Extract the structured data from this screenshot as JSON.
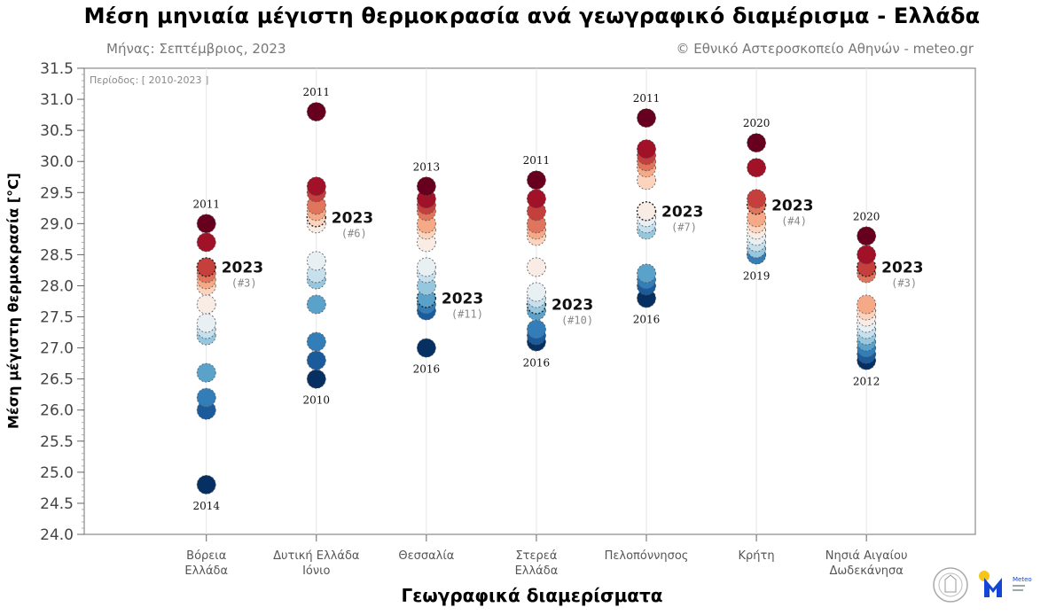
{
  "chart_data": {
    "type": "scatter",
    "title": "Μέση μηνιαία μέγιστη θερμοκρασία ανά γεωγραφικό διαμέρισμα - Ελλάδα",
    "subtitle_left": "Μήνας: Σεπτέμβριος, 2023",
    "subtitle_right": "© Εθνικό Αστεροσκοπείο Αθηνών - meteo.gr",
    "period_note": "Περίοδος: [ 2010-2023 ]",
    "ylabel": "Μέση μέγιστη θερμοκρασία [°C]",
    "xlabel": "Γεωγραφικά διαμερίσματα",
    "ylim": [
      24.0,
      31.5
    ],
    "yticks": [
      "24.0",
      "24.5",
      "25.0",
      "25.5",
      "26.0",
      "26.5",
      "27.0",
      "27.5",
      "28.0",
      "28.5",
      "29.0",
      "29.5",
      "30.0",
      "30.5",
      "31.0",
      "31.5"
    ],
    "highlight_year": "2023",
    "colormap": [
      "#67001f",
      "#b2182b",
      "#d6604d",
      "#f4a582",
      "#fddbc7",
      "#f7f7f7",
      "#d1e5f0",
      "#92c5de",
      "#4393c3",
      "#2166ac",
      "#053061"
    ],
    "regions": [
      {
        "name": [
          "Βόρεια",
          "Ελλάδα"
        ],
        "values": [
          29.0,
          28.7,
          28.3,
          28.2,
          28.1,
          28.0,
          27.7,
          27.4,
          27.3,
          27.2,
          26.6,
          26.2,
          26.0,
          24.8
        ],
        "max_year": "2011",
        "min_year": "2014",
        "rank_2023": 3,
        "rank_label": "(#3)"
      },
      {
        "name": [
          "Δυτική Ελλάδα",
          "Ιόνιο"
        ],
        "values": [
          30.8,
          29.6,
          29.5,
          29.3,
          29.2,
          29.1,
          29.0,
          28.4,
          28.2,
          28.1,
          27.7,
          27.1,
          26.8,
          26.5
        ],
        "max_year": "2011",
        "min_year": "2010",
        "rank_2023": 6,
        "rank_label": "(#6)"
      },
      {
        "name": [
          "Θεσσαλία"
        ],
        "values": [
          29.6,
          29.4,
          29.3,
          29.2,
          29.0,
          28.9,
          28.7,
          28.3,
          28.2,
          28.0,
          27.8,
          27.7,
          27.6,
          27.0
        ],
        "max_year": "2013",
        "min_year": "2016",
        "rank_2023": 11,
        "rank_label": "(#11)"
      },
      {
        "name": [
          "Στερεά",
          "Ελλάδα"
        ],
        "values": [
          29.7,
          29.4,
          29.2,
          29.0,
          28.9,
          28.8,
          28.3,
          27.9,
          27.8,
          27.7,
          27.6,
          27.3,
          27.2,
          27.1
        ],
        "max_year": "2011",
        "min_year": "2016",
        "rank_2023": 10,
        "rank_label": "(#10)"
      },
      {
        "name": [
          "Πελοπόννησος"
        ],
        "values": [
          30.7,
          30.2,
          30.1,
          30.0,
          29.9,
          29.7,
          29.2,
          29.1,
          29.0,
          28.9,
          28.2,
          28.1,
          28.0,
          27.8
        ],
        "max_year": "2011",
        "min_year": "2016",
        "rank_2023": 7,
        "rank_label": "(#7)"
      },
      {
        "name": [
          "Κρήτη"
        ],
        "values": [
          30.3,
          29.9,
          29.4,
          29.3,
          29.1,
          29.0,
          28.9,
          28.8,
          28.7,
          28.6,
          28.6,
          28.5,
          28.5,
          28.5
        ],
        "max_year": "2020",
        "min_year": "2019",
        "rank_2023": 4,
        "rank_label": "(#4)"
      },
      {
        "name": [
          "Νησιά Αιγαίου",
          "Δωδεκάνησα"
        ],
        "values": [
          28.8,
          28.5,
          28.3,
          28.2,
          27.7,
          27.6,
          27.5,
          27.4,
          27.3,
          27.2,
          27.1,
          27.0,
          26.9,
          26.8
        ],
        "max_year": "2020",
        "min_year": "2012",
        "rank_2023": 3,
        "rank_label": "(#3)"
      }
    ]
  },
  "logos": {
    "meteo": "Meteo"
  }
}
